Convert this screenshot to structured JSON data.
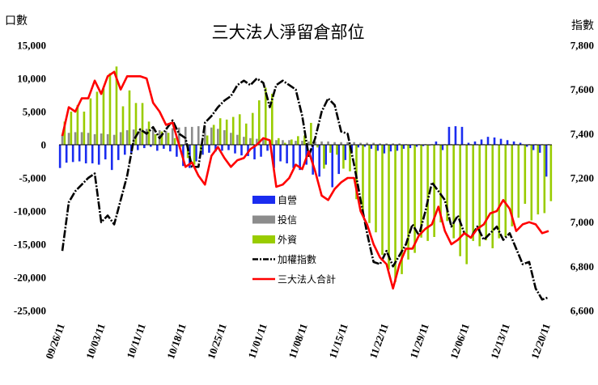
{
  "chart_data": {
    "type": "bar+line",
    "title": "三大法人淨留倉部位",
    "y_left_label": "口數",
    "y_right_label": "指數",
    "y_left_ticks": [
      "15,000",
      "10,000",
      "5,000",
      "0",
      "-5,000",
      "-10,000",
      "-15,000",
      "-20,000",
      "-25,000"
    ],
    "y_right_ticks": [
      "7,800",
      "7,600",
      "7,400",
      "7,200",
      "7,000",
      "6,800",
      "6,600"
    ],
    "ylim_left": [
      -25000,
      15000
    ],
    "ylim_right": [
      6600,
      7800
    ],
    "x_tick_labels": [
      "09/26/11",
      "10/03/11",
      "10/11/11",
      "10/18/11",
      "10/25/11",
      "11/01/11",
      "11/08/11",
      "11/15/11",
      "11/22/11",
      "11/29/11",
      "12/06/11",
      "12/13/11",
      "12/20/11"
    ],
    "legend": [
      {
        "name": "自營",
        "kind": "bar",
        "color": "#1a2cf0"
      },
      {
        "name": "投信",
        "kind": "bar",
        "color": "#8c8c8c"
      },
      {
        "name": "外資",
        "kind": "bar",
        "color": "#99cc00"
      },
      {
        "name": "加權指數",
        "kind": "line",
        "color": "#000000"
      },
      {
        "name": "三大法人合計",
        "kind": "line",
        "color": "#ff0000"
      }
    ],
    "series": [
      {
        "name": "自營",
        "axis": "left",
        "values": [
          -3500,
          -2700,
          -2600,
          -2500,
          -2800,
          -2800,
          -3000,
          -2200,
          -3800,
          -2300,
          -1500,
          -1200,
          -800,
          -500,
          -300,
          -900,
          -600,
          -1000,
          -1800,
          -3200,
          -3500,
          -2500,
          -1500,
          -1200,
          -1000,
          -900,
          -800,
          -1300,
          -1600,
          -1700,
          -2200,
          -1800,
          -900,
          -3500,
          -2500,
          -2800,
          -3500,
          -3800,
          -3000,
          -4500,
          -4800,
          -3000,
          -6400,
          -4400,
          -2300,
          -1100,
          -400,
          -300,
          -600,
          -900,
          -1300,
          -1000,
          -900,
          -600,
          -500,
          -300,
          -200,
          -100,
          500,
          -800,
          2700,
          2800,
          2700,
          300,
          500,
          800,
          1200,
          1100,
          900,
          700,
          500,
          300,
          -300,
          -800,
          -1200,
          -4800
        ]
      },
      {
        "name": "投信",
        "axis": "left",
        "values": [
          1500,
          1800,
          1900,
          1900,
          1800,
          1600,
          1700,
          1600,
          1500,
          1900,
          2200,
          2300,
          2400,
          2400,
          2300,
          2200,
          2100,
          2500,
          2600,
          2700,
          2700,
          2800,
          2800,
          2600,
          2400,
          2200,
          1800,
          1500,
          1200,
          1000,
          900,
          800,
          700,
          700,
          700,
          700,
          600,
          600,
          500,
          500,
          500,
          500,
          400,
          400,
          400,
          400,
          300,
          300,
          300,
          200,
          200,
          200,
          200,
          100,
          100,
          100,
          100,
          100,
          100,
          100,
          100,
          100,
          100,
          100,
          100,
          100,
          100,
          100,
          100,
          100,
          100,
          100,
          100,
          100,
          100,
          100
        ]
      },
      {
        "name": "外資",
        "axis": "left",
        "values": [
          3500,
          5000,
          6000,
          5000,
          7000,
          8000,
          8500,
          10800,
          11800,
          5800,
          8200,
          6300,
          6300,
          3500,
          1600,
          2000,
          1800,
          1000,
          -300,
          -2000,
          -3000,
          -1500,
          1400,
          3000,
          4000,
          3800,
          4200,
          4600,
          3200,
          4800,
          6700,
          8600,
          7700,
          1000,
          300,
          800,
          1300,
          1400,
          3300,
          -400,
          -3600,
          -1200,
          -1500,
          -3600,
          -4000,
          -8200,
          -10100,
          -11800,
          -13200,
          -16600,
          -18800,
          -20700,
          -19500,
          -17300,
          -16300,
          -14000,
          -14500,
          -13900,
          -11700,
          -11500,
          -14100,
          -16800,
          -18000,
          -14500,
          -15300,
          -14400,
          -15600,
          -14100,
          -13900,
          -12300,
          -11000,
          -8900,
          -11400,
          -10500,
          -10300,
          -8500
        ]
      },
      {
        "name": "加權指數",
        "axis": "right",
        "values": [
          6870,
          7090,
          7140,
          7170,
          7200,
          7220,
          7000,
          7030,
          6990,
          7100,
          7210,
          7370,
          7420,
          7400,
          7430,
          7380,
          7420,
          7460,
          7400,
          7380,
          7250,
          7250,
          7450,
          7480,
          7520,
          7550,
          7570,
          7620,
          7640,
          7620,
          7650,
          7630,
          7520,
          7620,
          7640,
          7620,
          7600,
          7480,
          7300,
          7380,
          7500,
          7560,
          7530,
          7410,
          7400,
          7260,
          7100,
          6950,
          6820,
          6810,
          6870,
          6800,
          6850,
          6900,
          6990,
          6940,
          7050,
          7180,
          7140,
          7100,
          6980,
          7030,
          6950,
          6930,
          6980,
          6920,
          6950,
          6980,
          6920,
          6950,
          6880,
          6810,
          6820,
          6700,
          6650,
          6660
        ]
      },
      {
        "name": "三大法人合計",
        "axis": "right",
        "values": [
          7390,
          7520,
          7500,
          7560,
          7560,
          7640,
          7580,
          7660,
          7680,
          7600,
          7660,
          7660,
          7660,
          7650,
          7540,
          7500,
          7440,
          7450,
          7350,
          7250,
          7270,
          7210,
          7170,
          7300,
          7340,
          7290,
          7250,
          7280,
          7290,
          7330,
          7350,
          7380,
          7370,
          7160,
          7170,
          7200,
          7260,
          7240,
          7320,
          7230,
          7120,
          7100,
          7150,
          7180,
          7200,
          7200,
          7050,
          6990,
          6900,
          6840,
          6810,
          6700,
          6810,
          6880,
          6880,
          6940,
          6970,
          6990,
          7070,
          6960,
          6900,
          6920,
          6950,
          6930,
          6970,
          6990,
          7040,
          7050,
          7100,
          7060,
          6960,
          6990,
          7000,
          6990,
          6950,
          6960
        ]
      }
    ]
  }
}
